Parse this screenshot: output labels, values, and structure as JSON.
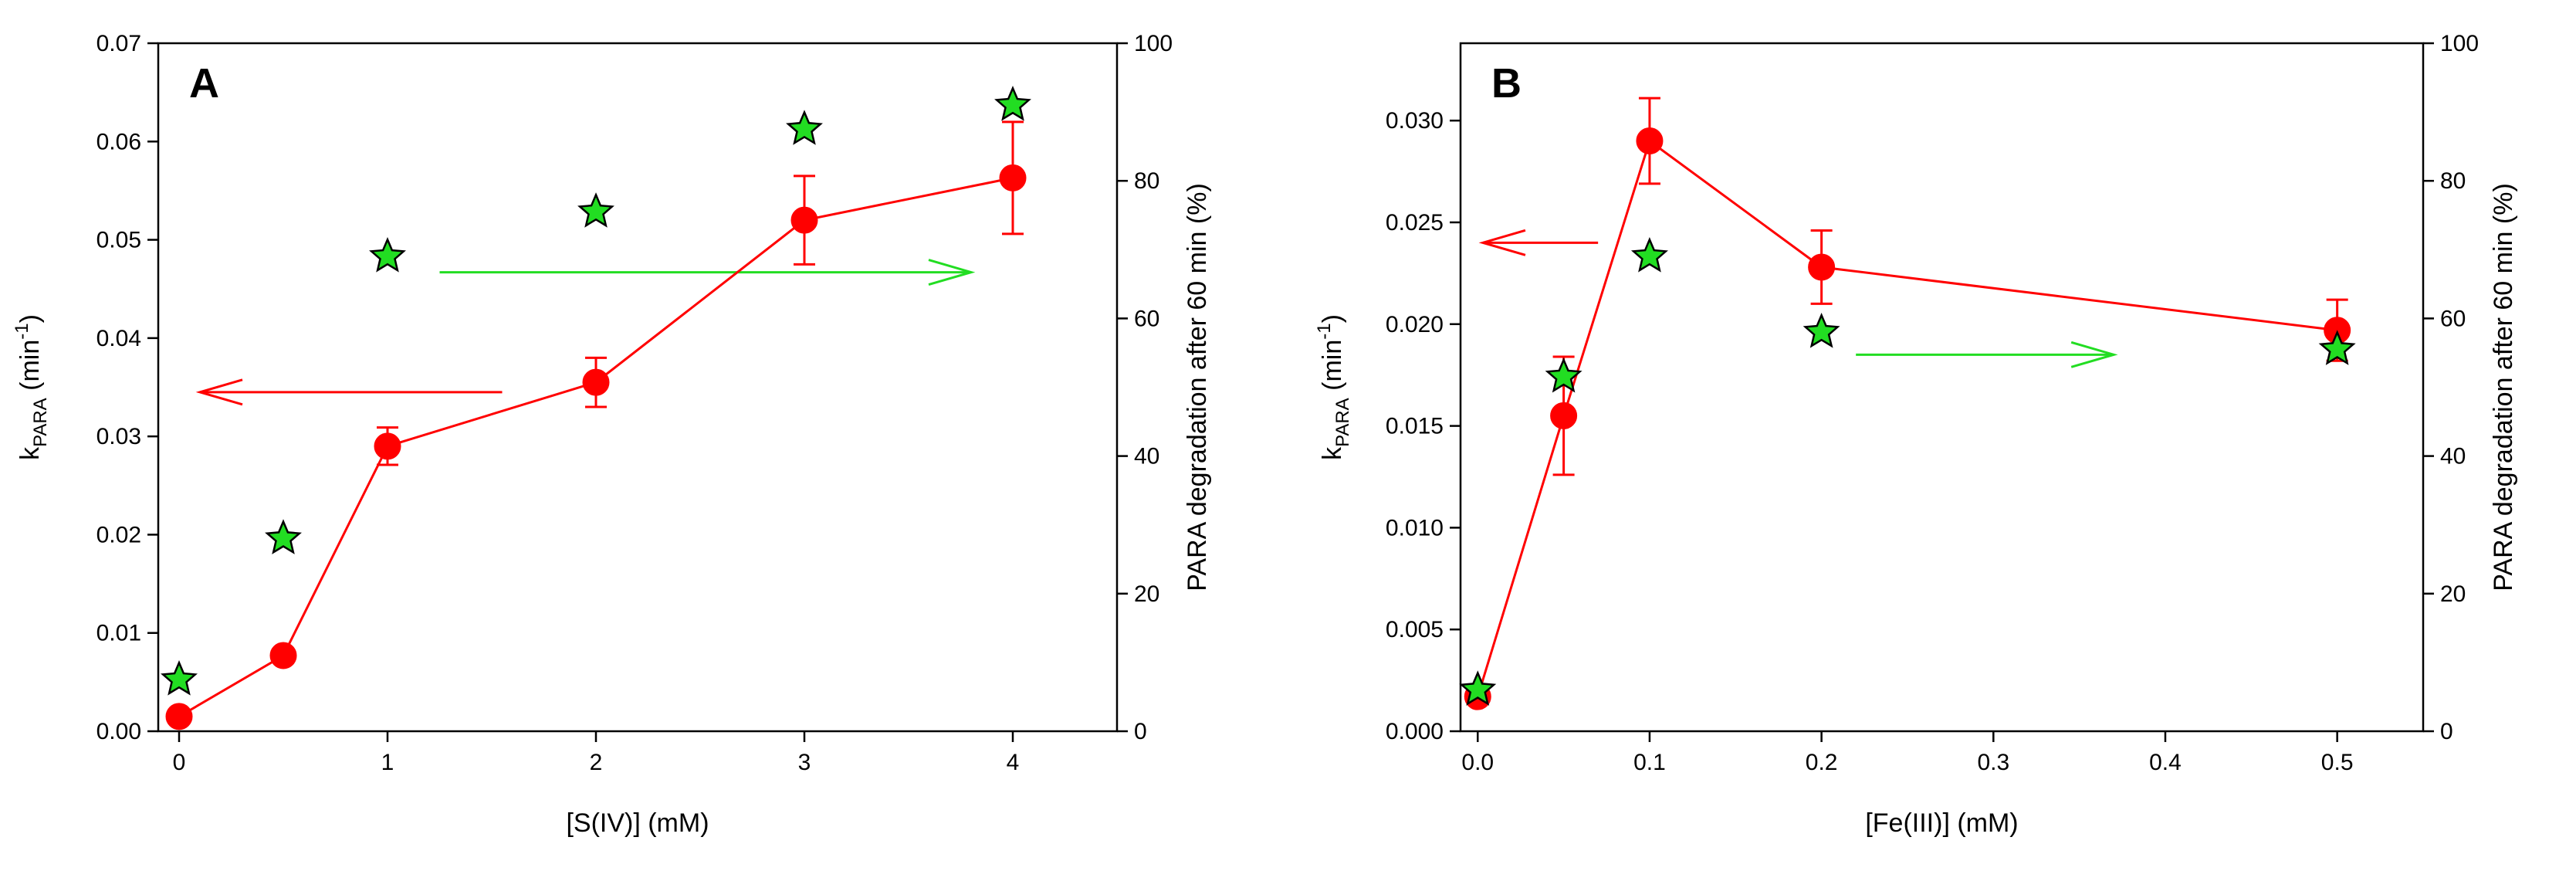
{
  "chart_data": [
    {
      "type": "line",
      "panel_label": "A",
      "xlabel": "[S(IV)] (mM)",
      "ylabel_left": "k",
      "ylabel_left_sub": "PARA",
      "ylabel_left_unit_pre": " (min",
      "ylabel_left_unit_sup": "-1",
      "ylabel_left_unit_post": ")",
      "ylabel_right": "PARA degradation after 60 min (%)",
      "x_ticks": [
        "0",
        "1",
        "2",
        "3",
        "4"
      ],
      "x_tick_values": [
        0,
        1,
        2,
        3,
        4
      ],
      "y_left_ticks": [
        "0.00",
        "0.01",
        "0.02",
        "0.03",
        "0.04",
        "0.05",
        "0.06",
        "0.07"
      ],
      "y_left_tick_values": [
        0,
        0.01,
        0.02,
        0.03,
        0.04,
        0.05,
        0.06,
        0.07
      ],
      "y_right_ticks": [
        "0",
        "20",
        "40",
        "60",
        "80",
        "100"
      ],
      "y_right_tick_values": [
        0,
        20,
        40,
        60,
        80,
        100
      ],
      "xlim": [
        -0.1,
        4.5
      ],
      "ylim_left": [
        0,
        0.07
      ],
      "ylim_right": [
        0,
        100
      ],
      "series": [
        {
          "name": "kPARA",
          "axis": "left",
          "marker": "circle",
          "color": "#ff0000",
          "x": [
            0,
            0.5,
            1,
            2,
            3,
            4
          ],
          "y": [
            0.0015,
            0.0077,
            0.029,
            0.0355,
            0.052,
            0.0563
          ],
          "err": [
            0,
            0,
            0.0019,
            0.0025,
            0.0045,
            0.0057
          ]
        },
        {
          "name": "PARA degradation after 60 min",
          "axis": "right",
          "marker": "star",
          "color": "#22dd22",
          "x": [
            0,
            0.5,
            1,
            2,
            3,
            4
          ],
          "y": [
            7.5,
            28,
            69,
            75.5,
            87.5,
            91
          ]
        }
      ],
      "arrows": [
        {
          "axis": "left",
          "x_from": 1.55,
          "x_to": 0.1,
          "y": 0.0345,
          "color": "#ff0000"
        },
        {
          "axis": "left",
          "x_from": 1.25,
          "x_to": 3.8,
          "y": 0.0467,
          "color": "#22dd22"
        }
      ]
    },
    {
      "type": "line",
      "panel_label": "B",
      "xlabel": "[Fe(III)] (mM)",
      "ylabel_left": "k",
      "ylabel_left_sub": "PARA",
      "ylabel_left_unit_pre": " (min",
      "ylabel_left_unit_sup": "-1",
      "ylabel_left_unit_post": ")",
      "ylabel_right": "PARA degradation after 60 min (%)",
      "x_ticks": [
        "0.0",
        "0.1",
        "0.2",
        "0.3",
        "0.4",
        "0.5"
      ],
      "x_tick_values": [
        0,
        0.1,
        0.2,
        0.3,
        0.4,
        0.5
      ],
      "y_left_ticks": [
        "0.000",
        "0.005",
        "0.010",
        "0.015",
        "0.020",
        "0.025",
        "0.030"
      ],
      "y_left_tick_values": [
        0,
        0.005,
        0.01,
        0.015,
        0.02,
        0.025,
        0.03
      ],
      "y_right_ticks": [
        "0",
        "20",
        "40",
        "60",
        "80",
        "100"
      ],
      "y_right_tick_values": [
        0,
        20,
        40,
        60,
        80,
        100
      ],
      "xlim": [
        -0.01,
        0.55
      ],
      "ylim_left": [
        0,
        0.0338
      ],
      "ylim_right": [
        0,
        100
      ],
      "series": [
        {
          "name": "kPARA",
          "axis": "left",
          "marker": "circle",
          "color": "#ff0000",
          "x": [
            0,
            0.05,
            0.1,
            0.2,
            0.5
          ],
          "y": [
            0.0017,
            0.0155,
            0.029,
            0.0228,
            0.0197
          ],
          "err": [
            0,
            0.0029,
            0.0021,
            0.0018,
            0.0015
          ]
        },
        {
          "name": "PARA degradation after 60 min",
          "axis": "right",
          "marker": "star",
          "color": "#22dd22",
          "x": [
            0,
            0.05,
            0.1,
            0.2,
            0.5
          ],
          "y": [
            6,
            51.5,
            69,
            58,
            55.5
          ]
        }
      ],
      "arrows": [
        {
          "axis": "left",
          "x_from": 0.07,
          "x_to": 0.003,
          "y": 0.024,
          "color": "#ff0000"
        },
        {
          "axis": "left",
          "x_from": 0.22,
          "x_to": 0.37,
          "y": 0.0185,
          "color": "#22dd22"
        }
      ]
    }
  ]
}
